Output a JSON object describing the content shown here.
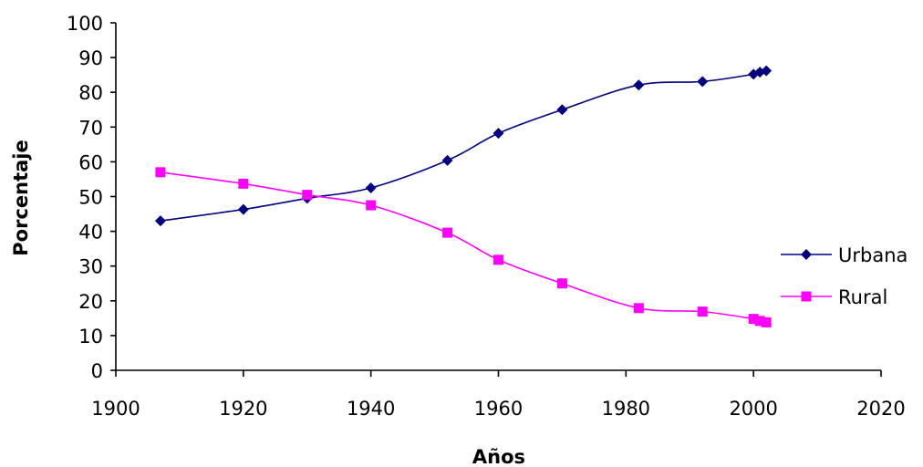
{
  "chart_data": {
    "type": "line",
    "title": "",
    "xlabel": "Años",
    "ylabel": "Porcentaje",
    "xlim": [
      1900,
      2020
    ],
    "ylim": [
      0,
      100
    ],
    "xticks": [
      1900,
      1920,
      1940,
      1960,
      1980,
      2000,
      2020
    ],
    "yticks": [
      0,
      10,
      20,
      30,
      40,
      50,
      60,
      70,
      80,
      90,
      100
    ],
    "grid": false,
    "legend_position": "right",
    "series": [
      {
        "name": "Urbana",
        "color": "#000080",
        "marker": "diamond",
        "x": [
          1907,
          1920,
          1930,
          1940,
          1952,
          1960,
          1970,
          1982,
          1992,
          2000,
          2001,
          2002
        ],
        "y": [
          43,
          46.3,
          49.5,
          52.5,
          60.4,
          68.2,
          75,
          82.1,
          83.1,
          85.2,
          85.8,
          86.2
        ]
      },
      {
        "name": "Rural",
        "color": "#FF00FF",
        "marker": "square",
        "x": [
          1907,
          1920,
          1930,
          1940,
          1952,
          1960,
          1970,
          1982,
          1992,
          2000,
          2001,
          2002
        ],
        "y": [
          57,
          53.7,
          50.5,
          47.5,
          39.6,
          31.8,
          25,
          17.9,
          16.9,
          14.8,
          14.2,
          13.8
        ]
      }
    ]
  }
}
